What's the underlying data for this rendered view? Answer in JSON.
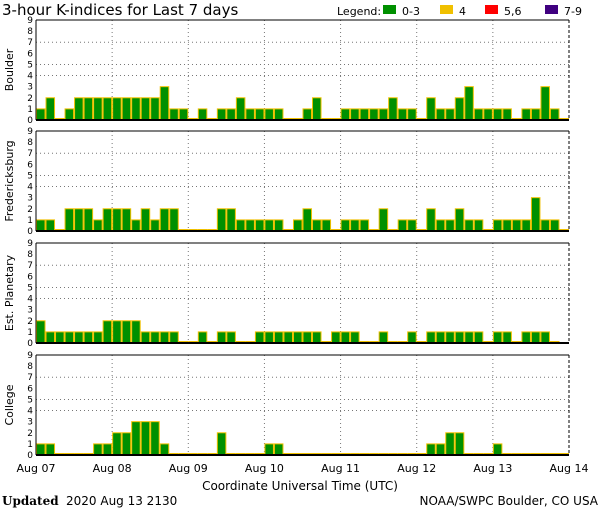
{
  "title": "3-hour K-indices for Last 7 days",
  "legend": {
    "label": "Legend:",
    "items": [
      {
        "label": "0-3",
        "color": "#009000"
      },
      {
        "label": "4",
        "color": "#f0c000"
      },
      {
        "label": "5,6",
        "color": "#ff0000"
      },
      {
        "label": "7-9",
        "color": "#400080"
      }
    ]
  },
  "bar_border_color": "#f0c000",
  "x_ticks": [
    "Aug 07",
    "Aug 08",
    "Aug 09",
    "Aug 10",
    "Aug 11",
    "Aug 12",
    "Aug 13",
    "Aug 14"
  ],
  "xlabel": "Coordinate Universal Time (UTC)",
  "footer": {
    "updated_label": "Updated",
    "updated_value": "2020 Aug 13 2130",
    "source": "NOAA/SWPC Boulder, CO USA"
  },
  "y_ticks": [
    "0",
    "1",
    "2",
    "3",
    "4",
    "5",
    "6",
    "7",
    "8",
    "9"
  ],
  "chart_data": [
    {
      "type": "bar",
      "ylabel": "Boulder",
      "ylim": [
        0,
        9
      ],
      "values": [
        1,
        2,
        0,
        1,
        2,
        2,
        2,
        2,
        2,
        2,
        2,
        2,
        2,
        3,
        1,
        1,
        0,
        1,
        0,
        1,
        1,
        2,
        1,
        1,
        1,
        1,
        0,
        0,
        1,
        2,
        0,
        0,
        1,
        1,
        1,
        1,
        1,
        2,
        1,
        1,
        0,
        2,
        1,
        1,
        2,
        3,
        1,
        1,
        1,
        1,
        0,
        1,
        1,
        3,
        1,
        0
      ]
    },
    {
      "type": "bar",
      "ylabel": "Fredericksburg",
      "ylim": [
        0,
        9
      ],
      "values": [
        1,
        1,
        0,
        2,
        2,
        2,
        1,
        2,
        2,
        2,
        1,
        2,
        1,
        2,
        2,
        0,
        0,
        0,
        0,
        2,
        2,
        1,
        1,
        1,
        1,
        1,
        0,
        1,
        2,
        1,
        1,
        0,
        1,
        1,
        1,
        0,
        2,
        0,
        1,
        1,
        0,
        2,
        1,
        1,
        2,
        1,
        1,
        0,
        1,
        1,
        1,
        1,
        3,
        1,
        1,
        0
      ]
    },
    {
      "type": "bar",
      "ylabel": "Est. Planetary",
      "ylim": [
        0,
        9
      ],
      "values": [
        2,
        1,
        1,
        1,
        1,
        1,
        1,
        2,
        2,
        2,
        2,
        1,
        1,
        1,
        1,
        0,
        0,
        1,
        0,
        1,
        1,
        0,
        0,
        1,
        1,
        1,
        1,
        1,
        1,
        1,
        0,
        1,
        1,
        1,
        0,
        0,
        1,
        0,
        0,
        1,
        0,
        1,
        1,
        1,
        1,
        1,
        1,
        0,
        1,
        1,
        0,
        1,
        1,
        1,
        0,
        null
      ]
    },
    {
      "type": "bar",
      "ylabel": "College",
      "ylim": [
        0,
        9
      ],
      "values": [
        1,
        1,
        0,
        0,
        0,
        0,
        1,
        1,
        2,
        2,
        3,
        3,
        3,
        1,
        0,
        0,
        0,
        0,
        0,
        2,
        0,
        0,
        0,
        0,
        1,
        1,
        0,
        0,
        0,
        0,
        0,
        0,
        0,
        0,
        0,
        0,
        0,
        0,
        0,
        0,
        0,
        1,
        1,
        2,
        2,
        0,
        0,
        0,
        1,
        0,
        0,
        0,
        0,
        0,
        0,
        0
      ]
    }
  ]
}
